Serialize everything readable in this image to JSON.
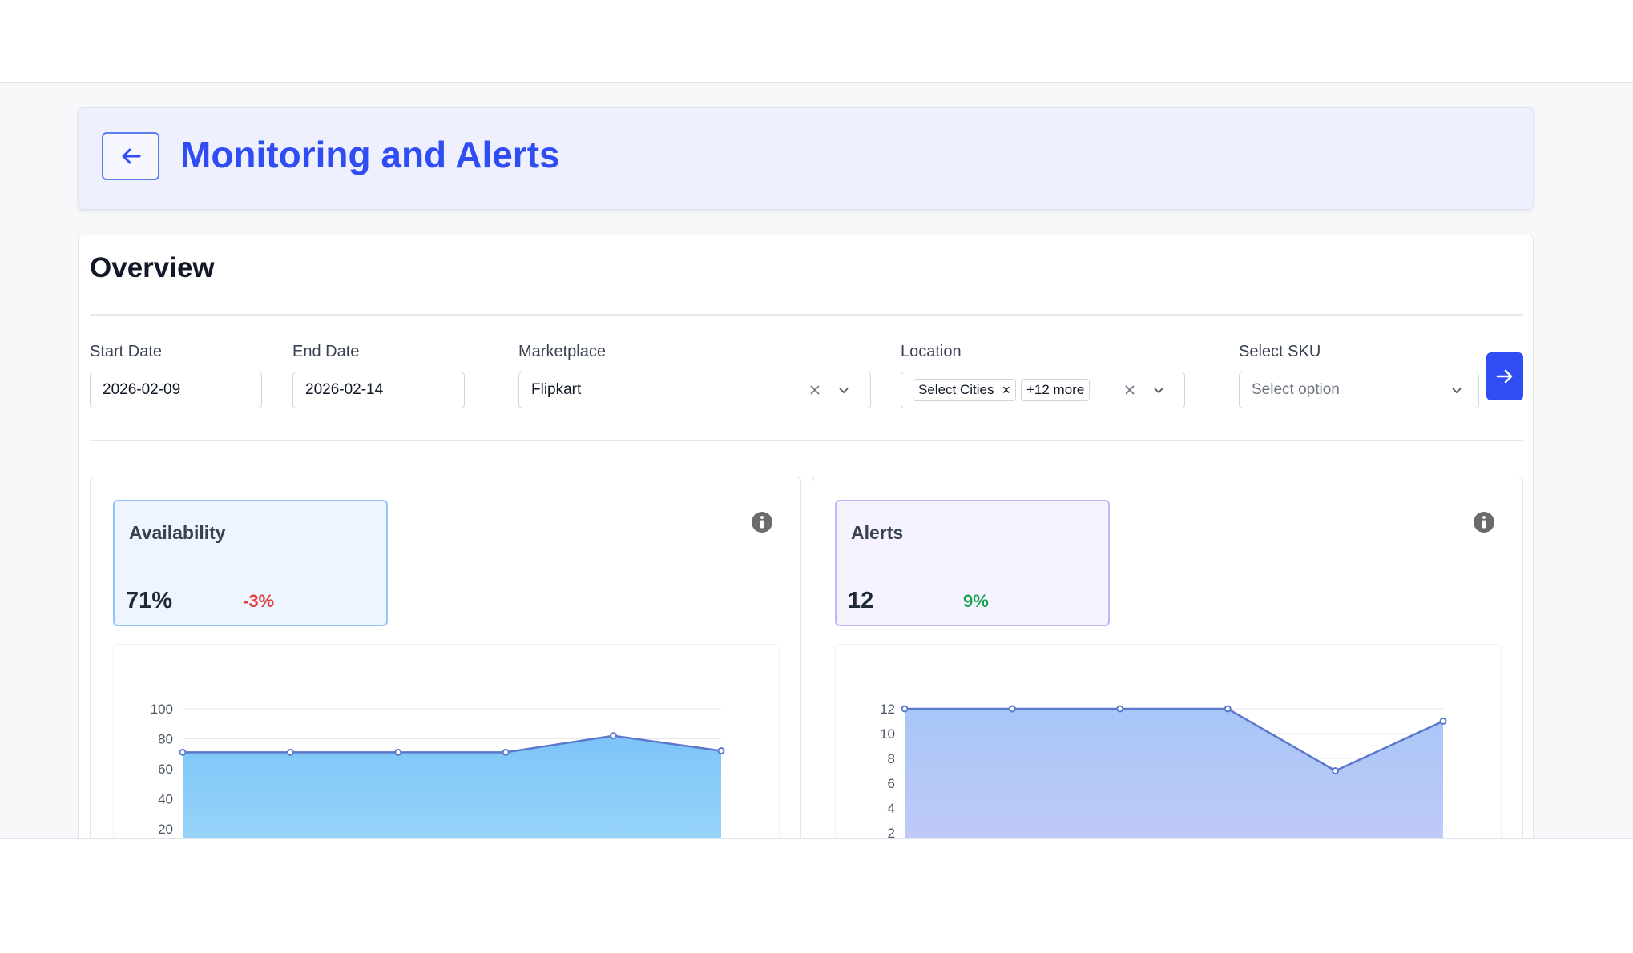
{
  "header": {
    "title": "Monitoring and Alerts",
    "back_icon": "arrow-left-icon"
  },
  "overview": {
    "title": "Overview",
    "filters": {
      "start_date": {
        "label": "Start Date",
        "value": "2026-02-09"
      },
      "end_date": {
        "label": "End Date",
        "value": "2026-02-14"
      },
      "marketplace": {
        "label": "Marketplace",
        "value": "Flipkart"
      },
      "location": {
        "label": "Location",
        "chip": "Select Cities",
        "more": "+12 more"
      },
      "sku": {
        "label": "Select SKU",
        "placeholder": "Select option"
      }
    },
    "submit_icon": "arrow-right-icon"
  },
  "colors": {
    "accent": "#2f4df2",
    "negative": "#e53e3e",
    "positive": "#16a34a",
    "line": "#5a78cc"
  },
  "availability": {
    "title": "Availability",
    "value": "71%",
    "change": "-3%",
    "change_color": "#e53e3e",
    "chart_data": {
      "type": "area",
      "x": [
        1,
        2,
        3,
        4,
        5,
        6
      ],
      "values": [
        71,
        71,
        71,
        71,
        82,
        72
      ],
      "ylim": [
        0,
        100
      ],
      "yticks": [
        "100",
        "80",
        "60",
        "40",
        "20"
      ],
      "grid": true
    }
  },
  "alerts": {
    "title": "Alerts",
    "value": "12",
    "change": "9%",
    "change_color": "#16a34a",
    "chart_data": {
      "type": "area",
      "x": [
        1,
        2,
        3,
        4,
        5,
        6
      ],
      "values": [
        12,
        12,
        12,
        12,
        7,
        11
      ],
      "ylim": [
        0,
        12
      ],
      "yticks": [
        "12",
        "10",
        "8",
        "6",
        "4",
        "2"
      ],
      "grid": true
    }
  }
}
